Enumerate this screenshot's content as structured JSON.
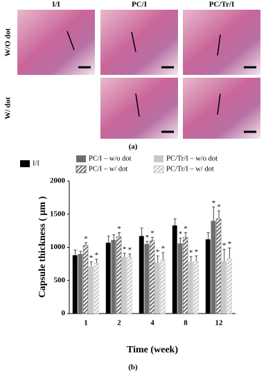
{
  "panel_a": {
    "column_labels": [
      "I/I",
      "PC/I",
      "PC/Tr/I"
    ],
    "row_labels": [
      "W/O dot",
      "W/ dot"
    ],
    "caption": "(a)"
  },
  "chart_data": {
    "type": "bar",
    "categories": [
      "1",
      "2",
      "4",
      "8",
      "12"
    ],
    "series": [
      {
        "name": "I/I",
        "color": "#000000",
        "hatch": false,
        "values": [
          880,
          1070,
          1170,
          1330,
          1120
        ],
        "errors": [
          80,
          100,
          120,
          100,
          100
        ],
        "annotations": [
          null,
          null,
          null,
          null,
          null
        ]
      },
      {
        "name": "PC/I – w/o dot",
        "color": "#6e6e6e",
        "hatch": false,
        "values": [
          900,
          1110,
          1050,
          1060,
          1400
        ],
        "errors": [
          40,
          80,
          40,
          80,
          210
        ],
        "annotations": [
          null,
          null,
          "*",
          "*",
          "*"
        ]
      },
      {
        "name": "PC/I – w/ dot",
        "color": "#6e6e6e",
        "hatch": true,
        "values": [
          1030,
          1160,
          1100,
          1150,
          1430
        ],
        "errors": [
          40,
          60,
          50,
          70,
          120
        ],
        "annotations": [
          "*",
          "*",
          "*",
          "*",
          "*"
        ]
      },
      {
        "name": "PC/Tr/I – w/o dot",
        "color": "#c8c8c8",
        "hatch": false,
        "values": [
          710,
          850,
          770,
          780,
          790
        ],
        "errors": [
          70,
          60,
          100,
          80,
          180
        ],
        "annotations": [
          "*",
          "*",
          "*",
          "*",
          "*"
        ]
      },
      {
        "name": "PC/Tr/I – w/ dot",
        "color": "#c8c8c8",
        "hatch": true,
        "values": [
          760,
          850,
          810,
          790,
          830
        ],
        "errors": [
          60,
          50,
          110,
          80,
          160
        ],
        "annotations": [
          "*",
          "*",
          "*",
          "*",
          "*"
        ]
      }
    ],
    "ylim": [
      0,
      2000
    ],
    "yticks": [
      0,
      500,
      1000,
      1500,
      2000
    ],
    "y_label": "Capsule thickness ( μm )",
    "x_label": "Time (week)",
    "caption": "(b)"
  }
}
